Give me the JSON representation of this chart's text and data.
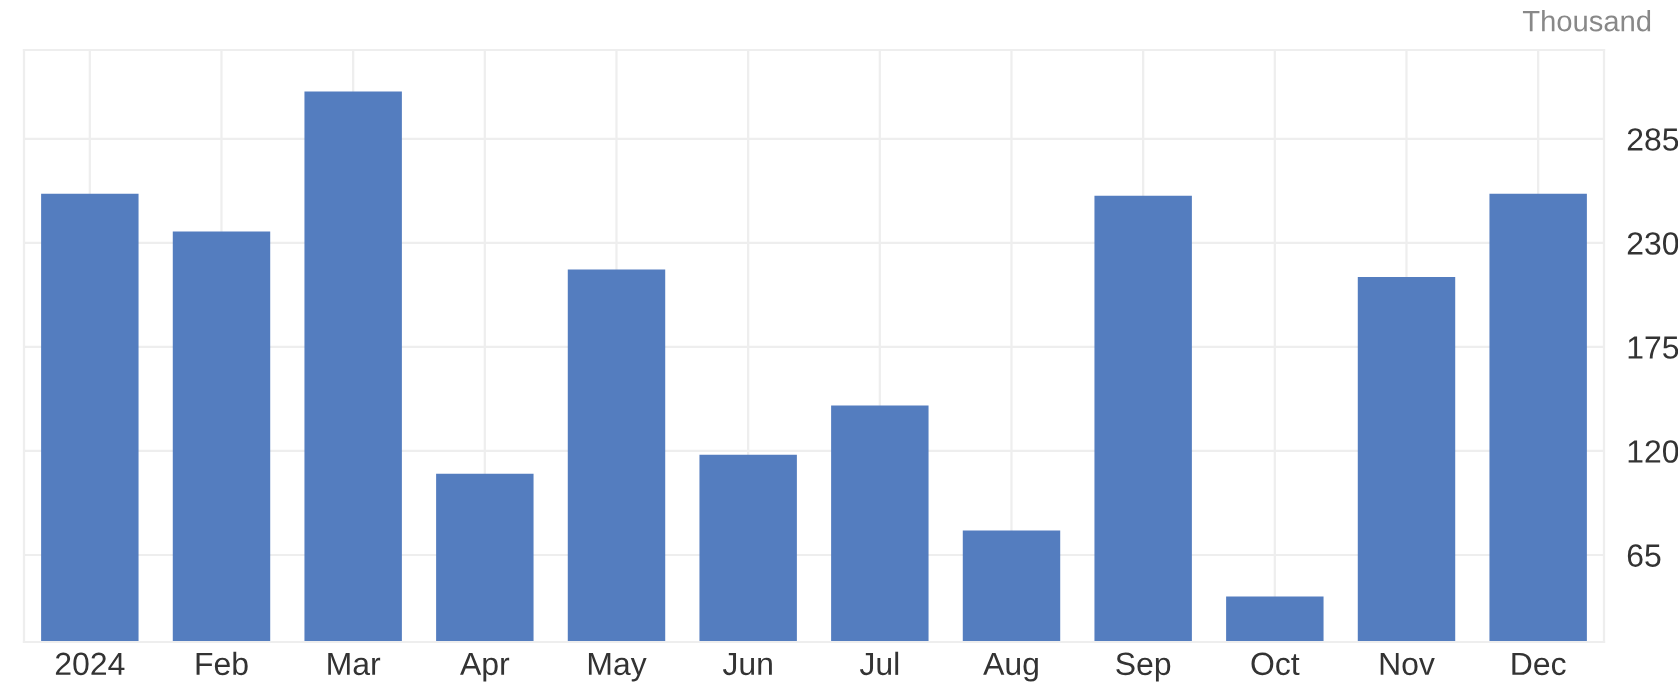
{
  "chart_data": {
    "type": "bar",
    "ylabel": "Thousand",
    "categories": [
      "2024",
      "Feb",
      "Mar",
      "Apr",
      "May",
      "Jun",
      "Jul",
      "Aug",
      "Sep",
      "Oct",
      "Nov",
      "Dec"
    ],
    "values": [
      256,
      236,
      310,
      108,
      216,
      118,
      144,
      78,
      255,
      43,
      212,
      256
    ],
    "color": "#547dbf",
    "ylim": [
      19,
      332
    ],
    "yticks": [
      65,
      120,
      175,
      230,
      285
    ],
    "grid": true,
    "legend": false
  }
}
